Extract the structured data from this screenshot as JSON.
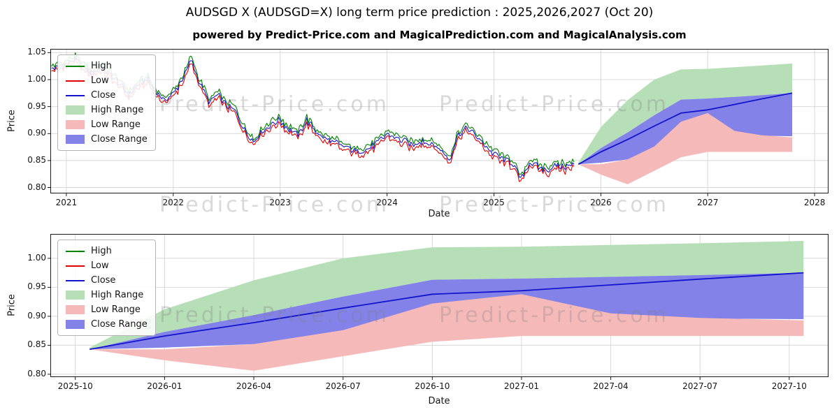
{
  "title": "AUDSGD X (AUDSGD=X) long term price prediction : 2025,2026,2027 (Oct 20)",
  "subtitle": "powered by Predict-Price.com and MagicalPrediction.com and MagicalAnalysis.com",
  "watermark": "Predict-Price.com",
  "colors": {
    "high_line": "#008000",
    "low_line": "#e00000",
    "close_line": "#1414cc",
    "high_band": "#b7dfb7",
    "low_band": "#f6b9b9",
    "close_band": "#8282e8",
    "grid": "#d8d8d8"
  },
  "legend": {
    "entries": [
      {
        "label": "High",
        "swatch": "line",
        "color": "#008000"
      },
      {
        "label": "Low",
        "swatch": "line",
        "color": "#e00000"
      },
      {
        "label": "Close",
        "swatch": "line",
        "color": "#1414cc"
      },
      {
        "label": "High Range",
        "swatch": "patch",
        "color": "#b7dfb7"
      },
      {
        "label": "Low Range",
        "swatch": "patch",
        "color": "#f6b9b9"
      },
      {
        "label": "Close Range",
        "swatch": "patch",
        "color": "#8282e8"
      }
    ]
  },
  "chart_data": [
    {
      "name": "history-and-forecast",
      "type": "line",
      "title": "",
      "xlabel": "Date",
      "ylabel": "Price",
      "xlim": [
        2020.85,
        2028.13
      ],
      "ylim": [
        0.789,
        1.057
      ],
      "xtick_values": [
        2021,
        2022,
        2023,
        2024,
        2025,
        2026,
        2027,
        2028
      ],
      "xtick_labels": [
        "2021",
        "2022",
        "2023",
        "2024",
        "2025",
        "2026",
        "2027",
        "2028"
      ],
      "ytick_values": [
        0.8,
        0.85,
        0.9,
        0.95,
        1.0,
        1.05
      ],
      "ytick_labels": [
        "0.80",
        "0.85",
        "0.90",
        "0.95",
        "1.00",
        "1.05"
      ],
      "grid": true,
      "legend_position": "upper-left",
      "history": {
        "note": "monthly anchor estimates read from plot; High/Low lines tightly track Close",
        "x_start": 2020.8333,
        "step_years": 0.08333,
        "close_anchors": [
          1.018,
          1.024,
          1.028,
          1.038,
          1.02,
          1.012,
          1.022,
          1.008,
          0.992,
          0.972,
          0.988,
          1.002,
          0.978,
          0.962,
          0.975,
          1.0,
          1.035,
          0.995,
          0.958,
          0.972,
          0.95,
          0.942,
          0.905,
          0.885,
          0.905,
          0.918,
          0.924,
          0.908,
          0.896,
          0.924,
          0.904,
          0.89,
          0.884,
          0.877,
          0.871,
          0.866,
          0.872,
          0.884,
          0.898,
          0.892,
          0.886,
          0.878,
          0.888,
          0.88,
          0.87,
          0.85,
          0.9,
          0.91,
          0.894,
          0.878,
          0.862,
          0.854,
          0.847,
          0.815,
          0.845,
          0.838,
          0.833,
          0.842,
          0.838,
          0.843
        ]
      },
      "forecast": {
        "dates": [
          "2025-10",
          "2026-01",
          "2026-04",
          "2026-07",
          "2026-10",
          "2027-01",
          "2027-04",
          "2027-07",
          "2027-10"
        ],
        "x": [
          2025.79,
          2026.0,
          2026.25,
          2026.5,
          2026.75,
          2027.0,
          2027.25,
          2027.5,
          2027.79
        ],
        "close": [
          0.843,
          0.866,
          0.889,
          0.914,
          0.938,
          0.944,
          0.954,
          0.964,
          0.975
        ],
        "high": [
          0.846,
          0.912,
          0.962,
          1.0,
          1.019,
          1.02,
          1.023,
          1.026,
          1.03
        ],
        "low": [
          0.843,
          0.824,
          0.806,
          0.831,
          0.856,
          0.866,
          0.866,
          0.866,
          0.866
        ],
        "close_upper": [
          0.843,
          0.873,
          0.902,
          0.934,
          0.963,
          0.965,
          0.968,
          0.971,
          0.975
        ],
        "close_lower": [
          0.843,
          0.846,
          0.852,
          0.874,
          0.897,
          0.898,
          0.897,
          0.896,
          0.895
        ],
        "low_upper": [
          0.843,
          0.843,
          0.852,
          0.876,
          0.922,
          0.938,
          0.905,
          0.897,
          0.893
        ]
      }
    },
    {
      "name": "forecast-zoom",
      "type": "line",
      "title": "",
      "xlabel": "Date",
      "ylabel": "Price",
      "xlim": [
        2025.68,
        2027.86
      ],
      "ylim": [
        0.795,
        1.042
      ],
      "xtick_values": [
        2025.75,
        2026.0,
        2026.25,
        2026.5,
        2026.75,
        2027.0,
        2027.25,
        2027.5,
        2027.75
      ],
      "xtick_labels": [
        "2025-10",
        "2026-01",
        "2026-04",
        "2026-07",
        "2026-10",
        "2027-01",
        "2027-04",
        "2027-07",
        "2027-10"
      ],
      "ytick_values": [
        0.8,
        0.85,
        0.9,
        0.95,
        1.0
      ],
      "ytick_labels": [
        "0.80",
        "0.85",
        "0.90",
        "0.95",
        "1.00"
      ],
      "grid": true,
      "legend_position": "upper-left",
      "forecast_note": "same forecast series as first chart, zoomed"
    }
  ]
}
